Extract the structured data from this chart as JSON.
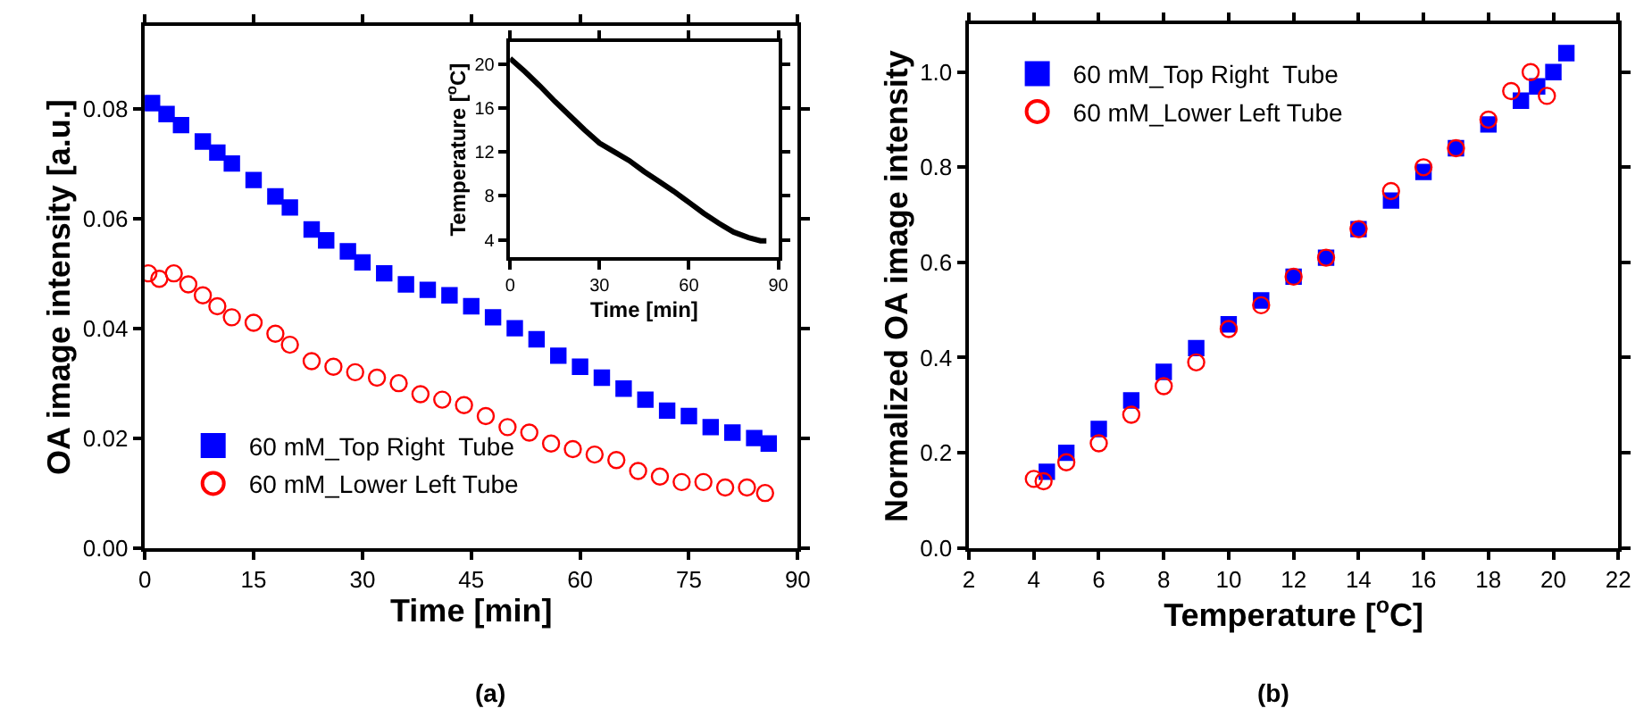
{
  "chart_data": [
    {
      "type": "scatter",
      "xlabel": "Time [min]",
      "ylabel": "OA image intensity [a.u.]",
      "annotations": [
        "(a)"
      ],
      "xlim": [
        0,
        90
      ],
      "ylim": [
        0,
        0.095
      ],
      "xticks": [
        0,
        15,
        30,
        45,
        60,
        75,
        90
      ],
      "yticks": [
        {
          "value": 0,
          "label": "0.00"
        },
        {
          "value": 0.02,
          "label": "0.02"
        },
        {
          "value": 0.04,
          "label": "0.04"
        },
        {
          "value": 0.06,
          "label": "0.06"
        },
        {
          "value": 0.08,
          "label": "0.08"
        }
      ],
      "legend": "bottom left",
      "series": [
        {
          "name": "60 mM_Top Right  Tube",
          "color": "#0000ff",
          "marker": "square",
          "x": [
            1,
            3,
            5,
            8,
            10,
            12,
            15,
            18,
            20,
            23,
            25,
            28,
            30,
            33,
            36,
            39,
            42,
            45,
            48,
            51,
            54,
            57,
            60,
            63,
            66,
            69,
            72,
            75,
            78,
            81,
            84,
            86
          ],
          "values": [
            0.081,
            0.079,
            0.077,
            0.074,
            0.072,
            0.07,
            0.067,
            0.064,
            0.062,
            0.058,
            0.056,
            0.054,
            0.052,
            0.05,
            0.048,
            0.047,
            0.046,
            0.044,
            0.042,
            0.04,
            0.038,
            0.035,
            0.033,
            0.031,
            0.029,
            0.027,
            0.025,
            0.024,
            0.022,
            0.021,
            0.02,
            0.019
          ]
        },
        {
          "name": "60 mM_Lower Left Tube",
          "color": "#ff0000",
          "marker": "circle",
          "x": [
            0.5,
            2,
            4,
            6,
            8,
            10,
            12,
            15,
            18,
            20,
            23,
            26,
            29,
            32,
            35,
            38,
            41,
            44,
            47,
            50,
            53,
            56,
            59,
            62,
            65,
            68,
            71,
            74,
            77,
            80,
            83,
            85.5
          ],
          "values": [
            0.05,
            0.049,
            0.05,
            0.048,
            0.046,
            0.044,
            0.042,
            0.041,
            0.039,
            0.037,
            0.034,
            0.033,
            0.032,
            0.031,
            0.03,
            0.028,
            0.027,
            0.026,
            0.024,
            0.022,
            0.021,
            0.019,
            0.018,
            0.017,
            0.016,
            0.014,
            0.013,
            0.012,
            0.012,
            0.011,
            0.011,
            0.01
          ]
        }
      ]
    },
    {
      "type": "line",
      "xlabel": "Time [min]",
      "ylabel": "Temperature [$^{o}$C]",
      "xlim": [
        0,
        90
      ],
      "ylim": [
        2.4,
        22
      ],
      "xticks": [
        0,
        30,
        60,
        90
      ],
      "yticks": [
        4,
        8,
        12,
        16,
        20
      ],
      "legend": false,
      "series": [
        {
          "color": "#000000",
          "x": [
            0,
            5,
            10,
            15,
            20,
            25,
            30,
            35,
            40,
            45,
            50,
            55,
            60,
            65,
            70,
            75,
            80,
            84,
            86
          ],
          "values": [
            20.5,
            19.3,
            18,
            16.6,
            15.3,
            14,
            12.8,
            12,
            11.2,
            10.2,
            9.3,
            8.4,
            7.4,
            6.4,
            5.5,
            4.7,
            4.2,
            3.9,
            3.9
          ]
        }
      ]
    },
    {
      "type": "scatter",
      "xlabel": "Temperature [$^{o}$C]",
      "ylabel": "Normalized OA image intensity",
      "annotations": [
        "(b)"
      ],
      "xlim": [
        2,
        22
      ],
      "ylim": [
        0,
        1.1
      ],
      "xticks": [
        2,
        4,
        6,
        8,
        10,
        12,
        14,
        16,
        18,
        20,
        22
      ],
      "yticks": [
        {
          "value": 0,
          "label": "0.0"
        },
        {
          "value": 0.2,
          "label": "0.2"
        },
        {
          "value": 0.4,
          "label": "0.4"
        },
        {
          "value": 0.6,
          "label": "0.6"
        },
        {
          "value": 0.8,
          "label": "0.8"
        },
        {
          "value": 1.0,
          "label": "1.0"
        }
      ],
      "legend": "top left",
      "series": [
        {
          "name": "60 mM_Top Right  Tube",
          "color": "#0000ff",
          "marker": "square",
          "x": [
            4.4,
            5,
            6,
            7,
            8,
            9,
            10,
            11,
            12,
            13,
            14,
            15,
            16,
            17,
            18,
            19,
            19.5,
            20,
            20.4
          ],
          "values": [
            0.16,
            0.2,
            0.25,
            0.31,
            0.37,
            0.42,
            0.47,
            0.52,
            0.57,
            0.61,
            0.67,
            0.73,
            0.79,
            0.84,
            0.89,
            0.94,
            0.97,
            1.0,
            1.04
          ]
        },
        {
          "name": "60 mM_Lower Left Tube",
          "color": "#ff0000",
          "marker": "circle",
          "x": [
            4,
            4.3,
            5,
            6,
            7,
            8,
            9,
            10,
            11,
            12,
            13,
            14,
            15,
            16,
            17,
            18,
            18.7,
            19.3,
            19.8
          ],
          "values": [
            0.145,
            0.14,
            0.18,
            0.22,
            0.28,
            0.34,
            0.39,
            0.46,
            0.51,
            0.57,
            0.61,
            0.67,
            0.75,
            0.8,
            0.84,
            0.9,
            0.96,
            1.0,
            0.95
          ]
        }
      ]
    }
  ]
}
